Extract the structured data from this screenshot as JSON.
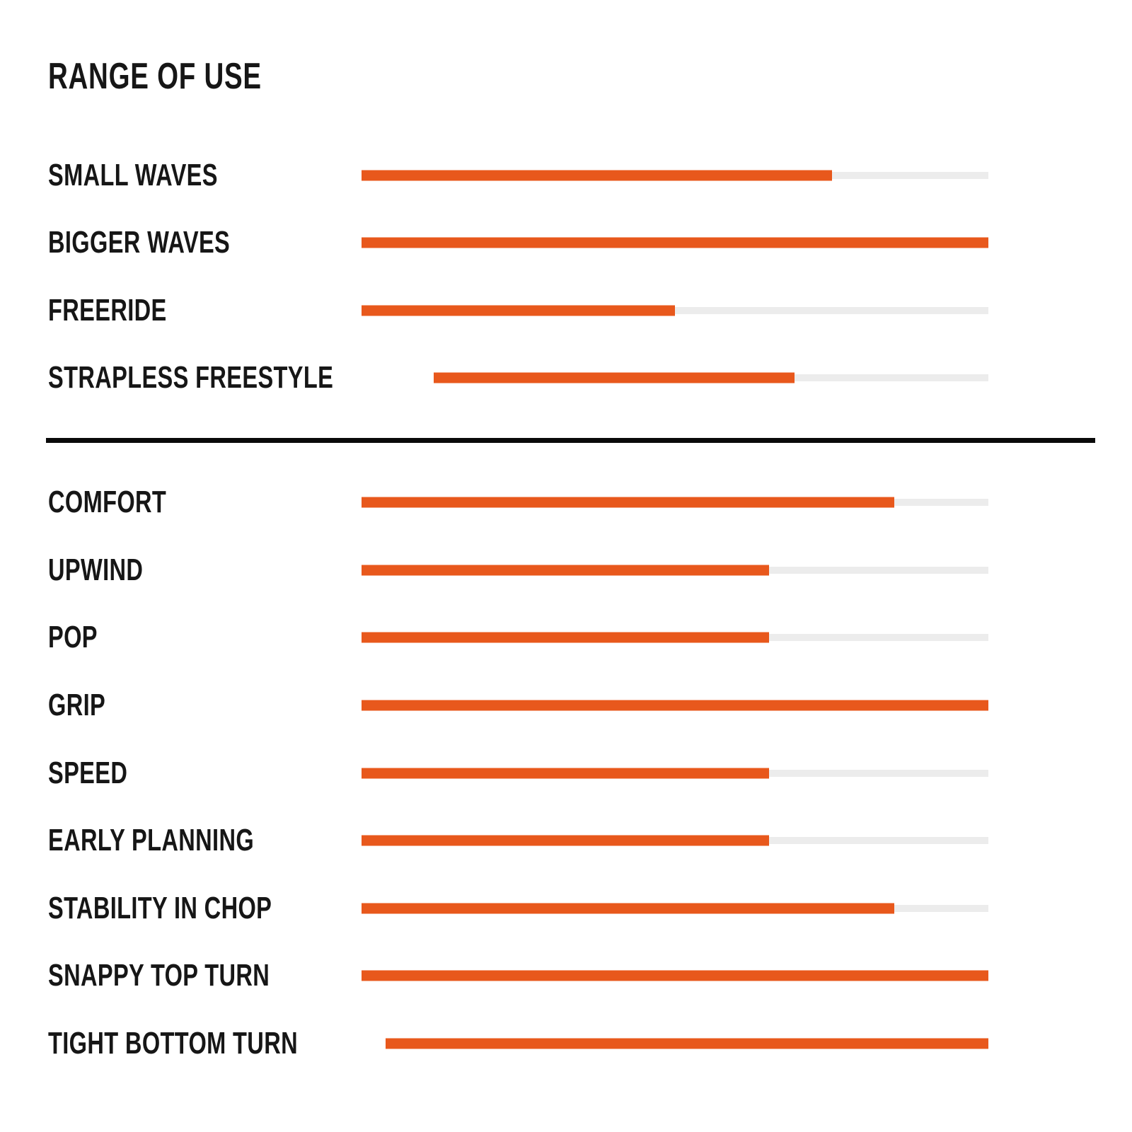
{
  "colors": {
    "accent": "#E8581C",
    "track": "#ECECEC",
    "text": "#161616",
    "divider": "#0A0A0A",
    "background": "#FFFFFF"
  },
  "chart_data": {
    "type": "bar",
    "orientation": "horizontal",
    "title": "RANGE OF USE",
    "value_unit": "percent of bar filled",
    "xlim": [
      0,
      100
    ],
    "grid": false,
    "legend": false,
    "sections": [
      {
        "name": "range-of-use",
        "categories": [
          "SMALL WAVES",
          "BIGGER WAVES",
          "FREERIDE",
          "STRAPLESS FREESTYLE"
        ],
        "values": [
          75,
          100,
          50,
          65
        ]
      },
      {
        "name": "performance-characteristics",
        "categories": [
          "COMFORT",
          "UPWIND",
          "POP",
          "GRIP",
          "SPEED",
          "EARLY PLANNING",
          "STABILITY IN CHOP",
          "SNAPPY TOP TURN",
          "TIGHT BOTTOM TURN"
        ],
        "values": [
          85,
          65,
          65,
          100,
          65,
          65,
          85,
          100,
          100
        ]
      }
    ]
  }
}
